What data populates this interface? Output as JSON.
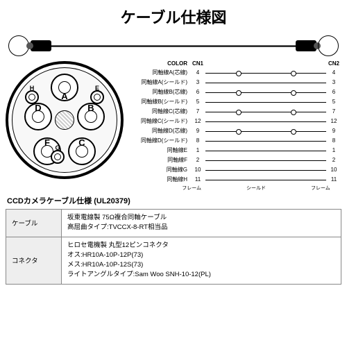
{
  "title": "ケーブル仕様図",
  "crossSection": {
    "wires": [
      "A",
      "B",
      "C",
      "D",
      "E",
      "F",
      "G",
      "H"
    ]
  },
  "pinTable": {
    "headers": {
      "color": "COLOR",
      "cn1": "CN1",
      "cn2": "CN2"
    },
    "rows": [
      {
        "label": "同軸線A(芯線)",
        "cn1": "4",
        "cn2": "4",
        "shield": true
      },
      {
        "label": "同軸線A(シールド)",
        "cn1": "3",
        "cn2": "3",
        "shield": false
      },
      {
        "label": "同軸線B(芯線)",
        "cn1": "6",
        "cn2": "6",
        "shield": true
      },
      {
        "label": "同軸線B(シールド)",
        "cn1": "5",
        "cn2": "5",
        "shield": false
      },
      {
        "label": "同軸線C(芯線)",
        "cn1": "7",
        "cn2": "7",
        "shield": true
      },
      {
        "label": "同軸線C(シールド)",
        "cn1": "12",
        "cn2": "12",
        "shield": false
      },
      {
        "label": "同軸線D(芯線)",
        "cn1": "9",
        "cn2": "9",
        "shield": true
      },
      {
        "label": "同軸線D(シールド)",
        "cn1": "8",
        "cn2": "8",
        "shield": false
      },
      {
        "label": "同軸線E",
        "cn1": "1",
        "cn2": "1",
        "shield": false
      },
      {
        "label": "同軸線F",
        "cn1": "2",
        "cn2": "2",
        "shield": false
      },
      {
        "label": "同軸線G",
        "cn1": "10",
        "cn2": "10",
        "shield": false
      },
      {
        "label": "同軸線H",
        "cn1": "11",
        "cn2": "11",
        "shield": false
      }
    ],
    "footer": {
      "left": "フレーム",
      "mid": "シールド",
      "right": "フレーム"
    }
  },
  "specTitle": "CCDカメラケーブル仕様 (UL20379)",
  "specTable": [
    {
      "key": "ケーブル",
      "lines": [
        "坂東電線製 75Ω複合同軸ケーブル",
        "高屈曲タイプ:TVCCX-8-RT相当品"
      ]
    },
    {
      "key": "コネクタ",
      "lines": [
        "ヒロセ電機製 丸型12ピンコネクタ",
        "オス:HR10A-10P-12P(73)",
        "メス:HR10A-10P-12S(73)",
        "ライトアングルタイプ:Sam Woo SNH-10-12(PL)"
      ]
    }
  ]
}
